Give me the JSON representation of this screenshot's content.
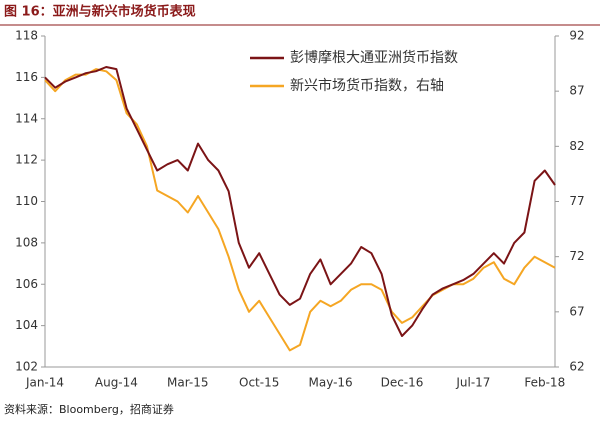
{
  "chart_data": {
    "type": "line",
    "title": "图 16：亚洲与新兴市场货币表现",
    "source": "资料来源：Bloomberg，招商证券",
    "categories": [
      "Jan-14",
      null,
      null,
      null,
      null,
      null,
      null,
      "Aug-14",
      null,
      null,
      null,
      null,
      null,
      null,
      "Mar-15",
      null,
      null,
      null,
      null,
      null,
      null,
      "Oct-15",
      null,
      null,
      null,
      null,
      null,
      null,
      "May-16",
      null,
      null,
      null,
      null,
      null,
      null,
      "Dec-16",
      null,
      null,
      null,
      null,
      null,
      null,
      "Jul-17",
      null,
      null,
      null,
      null,
      null,
      null,
      "Feb-18",
      null
    ],
    "series": [
      {
        "name": "彭博摩根大通亚洲货币指数",
        "color": "#7b1416",
        "values": [
          116,
          115.5,
          115.8,
          116,
          116.2,
          116.3,
          116.5,
          116.4,
          114.5,
          113.5,
          112.5,
          111.5,
          111.8,
          112,
          111.5,
          112.8,
          112,
          111.5,
          110.5,
          108,
          106.8,
          107.5,
          106.5,
          105.5,
          105,
          105.3,
          106.5,
          107.2,
          106,
          106.5,
          107,
          107.8,
          107.5,
          106.5,
          104.5,
          103.5,
          104,
          104.8,
          105.5,
          105.8,
          106,
          106.2,
          106.5,
          107,
          107.5,
          107,
          108,
          108.5,
          111,
          111.5,
          110.8
        ]
      },
      {
        "name": "新兴市场货币指数，右轴",
        "color": "#f5a623",
        "axis": "y2",
        "values": [
          88,
          87,
          88,
          88.5,
          88.5,
          89,
          88.8,
          88,
          85,
          84,
          82,
          78,
          77.5,
          77,
          76,
          77.5,
          76,
          74.5,
          72,
          69,
          67,
          68,
          66.5,
          65,
          63.5,
          64,
          67,
          68,
          67.5,
          68,
          69,
          69.5,
          69.5,
          69,
          67,
          66,
          66.5,
          67.5,
          68.5,
          69,
          69.5,
          69.5,
          70,
          71,
          71.5,
          70,
          69.5,
          71,
          72,
          71.5,
          71
        ]
      }
    ],
    "ylim": [
      102,
      118
    ],
    "yticks": [
      102,
      104,
      106,
      108,
      110,
      112,
      114,
      116,
      118
    ],
    "y2lim": [
      62,
      92
    ],
    "y2ticks": [
      62,
      67,
      72,
      77,
      82,
      87,
      92
    ],
    "grid": false,
    "legend": "upper right"
  }
}
